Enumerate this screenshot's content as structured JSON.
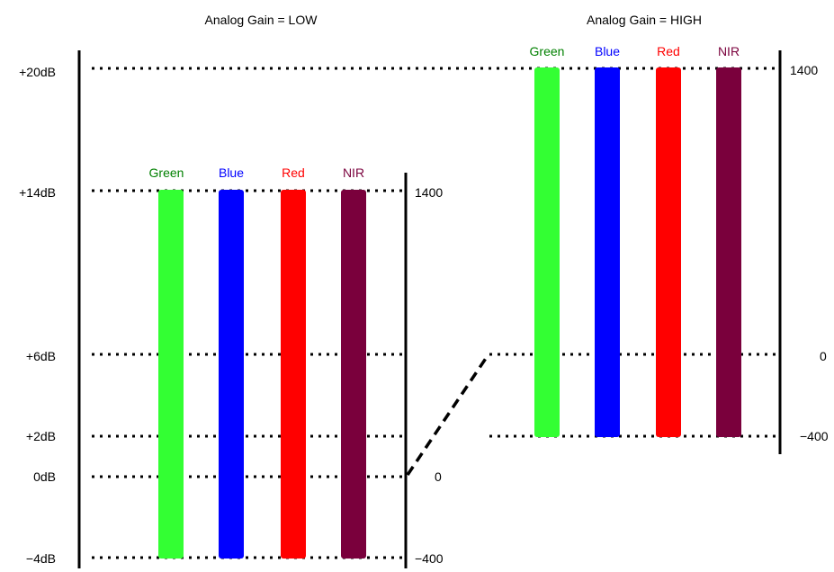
{
  "panels": {
    "low": {
      "title": "Analog Gain = LOW",
      "channels": [
        {
          "label": "Green",
          "color": "#33ff33",
          "label_color": "#008000"
        },
        {
          "label": "Blue",
          "color": "#0000ff",
          "label_color": "#0000ff"
        },
        {
          "label": "Red",
          "color": "#ff0000",
          "label_color": "#ff0000"
        },
        {
          "label": "NIR",
          "color": "#7a003c",
          "label_color": "#7a003c"
        }
      ],
      "right_ticks": {
        "top": "1400",
        "zero": "0",
        "bottom": "−400"
      }
    },
    "high": {
      "title": "Analog Gain = HIGH",
      "channels": [
        {
          "label": "Green",
          "color": "#33ff33",
          "label_color": "#008000"
        },
        {
          "label": "Blue",
          "color": "#0000ff",
          "label_color": "#0000ff"
        },
        {
          "label": "Red",
          "color": "#ff0000",
          "label_color": "#ff0000"
        },
        {
          "label": "NIR",
          "color": "#7a003c",
          "label_color": "#7a003c"
        }
      ],
      "right_ticks": {
        "top": "1400",
        "zero": "0",
        "bottom": "−400"
      }
    }
  },
  "db_axis": {
    "labels": [
      "+20dB",
      "+14dB",
      "+6dB",
      "+2dB",
      "0dB",
      "−4dB"
    ]
  }
}
